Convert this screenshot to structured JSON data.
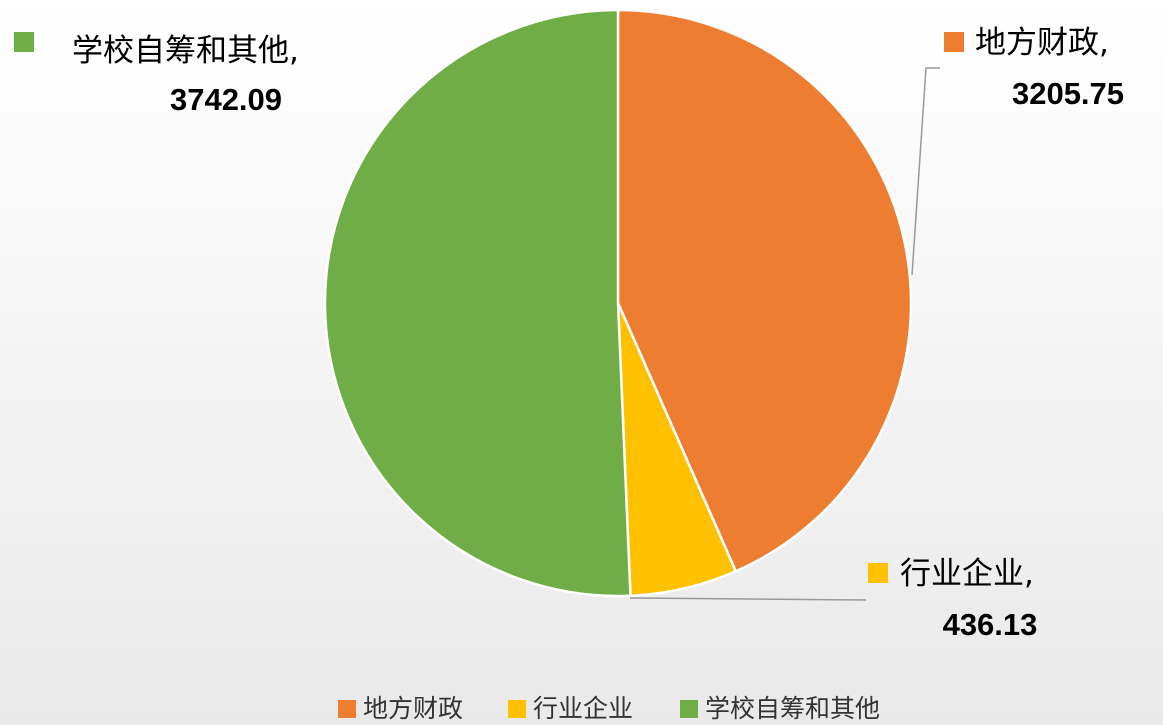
{
  "chart_data": {
    "type": "pie",
    "categories": [
      "地方财政",
      "行业企业",
      "学校自筹和其他"
    ],
    "values": [
      3205.75,
      436.13,
      3742.09
    ],
    "colors": [
      "#ED7D31",
      "#FFC000",
      "#70AD47"
    ],
    "label_separator": ",",
    "legend": "bottom"
  }
}
